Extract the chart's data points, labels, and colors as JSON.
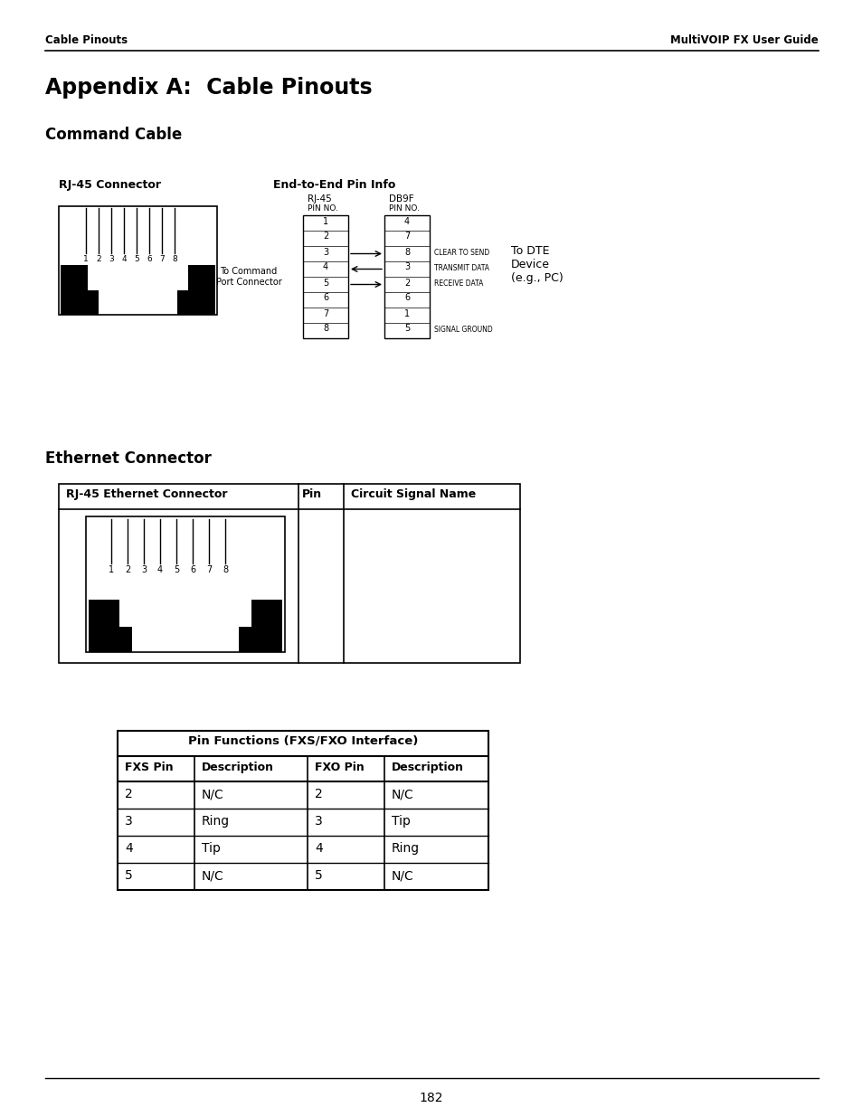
{
  "page_header_left": "Cable Pinouts",
  "page_header_right": "MultiVOIP FX User Guide",
  "title": "Appendix A:  Cable Pinouts",
  "section1": "Command Cable",
  "rj45_label": "RJ-45 Connector",
  "end_to_end_label": "End-to-End Pin Info",
  "rj45_col_label": "RJ-45",
  "rj45_col_sub": "PIN NO.",
  "db9f_col_label": "DB9F",
  "db9f_col_sub": "PIN NO.",
  "to_command": "To Command\nPort Connector",
  "rj45_pins": [
    "1",
    "2",
    "3",
    "4",
    "5",
    "6",
    "7",
    "8"
  ],
  "db9f_pins": [
    "4",
    "7",
    "8",
    "3",
    "2",
    "6",
    "1",
    "5"
  ],
  "arrow_directions": [
    "right",
    "left",
    "right"
  ],
  "signal_labels": [
    "CLEAR TO SEND",
    "TRANSMIT DATA",
    "RECEIVE DATA"
  ],
  "signal_ground_label": "SIGNAL GROUND",
  "to_dte_label": "To DTE\nDevice\n(e.g., PC)",
  "section2": "Ethernet Connector",
  "eth_table_headers": [
    "RJ-45 Ethernet Connector",
    "Pin",
    "Circuit Signal Name"
  ],
  "fxs_table_title": "Pin Functions (FXS/FXO Interface)",
  "fxs_headers": [
    "FXS Pin",
    "Description",
    "FXO Pin",
    "Description"
  ],
  "fxs_rows": [
    [
      "2",
      "N/C",
      "2",
      "N/C"
    ],
    [
      "3",
      "Ring",
      "3",
      "Tip"
    ],
    [
      "4",
      "Tip",
      "4",
      "Ring"
    ],
    [
      "5",
      "N/C",
      "5",
      "N/C"
    ]
  ],
  "page_number": "182",
  "bg_color": "#ffffff"
}
